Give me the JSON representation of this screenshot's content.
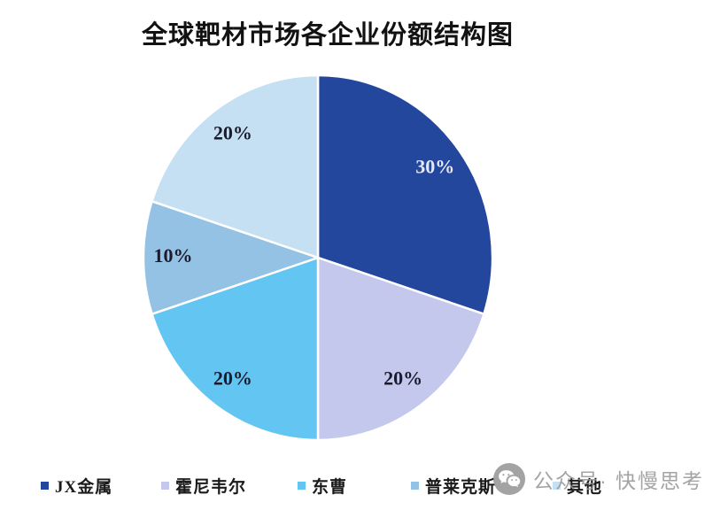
{
  "chart": {
    "title": "全球靶材市场各企业份额结构图"
  },
  "chart_data": {
    "type": "pie",
    "title": "全球靶材市场各企业份额结构图",
    "start_angle_deg": 0,
    "direction": "clockwise",
    "legend_position": "bottom",
    "series": [
      {
        "name": "JX金属",
        "value": 30,
        "label": "30%",
        "color": "#24479E",
        "label_color": "#E6E9F5"
      },
      {
        "name": "霍尼韦尔",
        "value": 20,
        "label": "20%",
        "color": "#C4C8ED",
        "label_color": "#1B1B2E"
      },
      {
        "name": "东曹",
        "value": 20,
        "label": "20%",
        "color": "#63C6F2",
        "label_color": "#1B1B2E"
      },
      {
        "name": "普莱克斯",
        "value": 10,
        "label": "10%",
        "color": "#93C2E4",
        "label_color": "#1B1B2E"
      },
      {
        "name": "其他",
        "value": 20,
        "label": "20%",
        "color": "#C5E0F2",
        "label_color": "#1B1B2E"
      }
    ],
    "slice_border_color": "#FFFFFF"
  },
  "watermark": {
    "icon": "wechat-icon",
    "text": "公众号· 快慢思考"
  }
}
